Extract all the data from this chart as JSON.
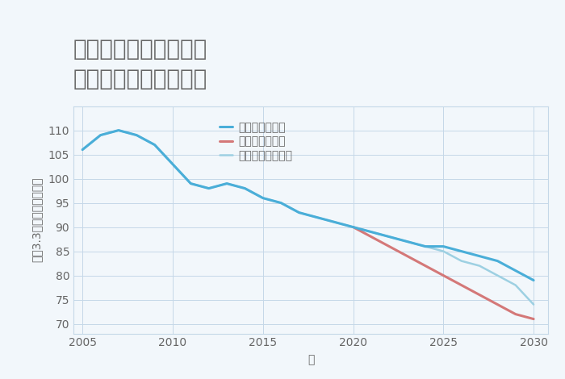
{
  "title": "千葉県白井市清水口の\n中古戸建ての価格推移",
  "xlabel": "年",
  "ylabel": "坪（3.3㎡）単価（万円）",
  "background_color": "#f2f7fb",
  "plot_bg_color": "#f2f7fb",
  "grid_color": "#c5d8e8",
  "ylim": [
    68,
    115
  ],
  "xlim": [
    2004.5,
    2030.8
  ],
  "yticks": [
    70,
    75,
    80,
    85,
    90,
    95,
    100,
    105,
    110
  ],
  "xticks": [
    2005,
    2010,
    2015,
    2020,
    2025,
    2030
  ],
  "good_scenario": {
    "x": [
      2005,
      2006,
      2007,
      2008,
      2009,
      2010,
      2011,
      2012,
      2013,
      2014,
      2015,
      2016,
      2017,
      2018,
      2019,
      2020,
      2021,
      2022,
      2023,
      2024,
      2025,
      2026,
      2027,
      2028,
      2029,
      2030
    ],
    "y": [
      106,
      109,
      110,
      109,
      107,
      103,
      99,
      98,
      99,
      98,
      96,
      95,
      93,
      92,
      91,
      90,
      89,
      88,
      87,
      86,
      86,
      85,
      84,
      83,
      81,
      79
    ],
    "color": "#4aaed8",
    "label": "グッドシナリオ",
    "linewidth": 2.2
  },
  "bad_scenario": {
    "x": [
      2020,
      2021,
      2022,
      2023,
      2024,
      2025,
      2026,
      2027,
      2028,
      2029,
      2030
    ],
    "y": [
      90,
      88,
      86,
      84,
      82,
      80,
      78,
      76,
      74,
      72,
      71
    ],
    "color": "#d47878",
    "label": "バッドシナリオ",
    "linewidth": 2.2
  },
  "normal_scenario": {
    "x": [
      2005,
      2006,
      2007,
      2008,
      2009,
      2010,
      2011,
      2012,
      2013,
      2014,
      2015,
      2016,
      2017,
      2018,
      2019,
      2020,
      2021,
      2022,
      2023,
      2024,
      2025,
      2026,
      2027,
      2028,
      2029,
      2030
    ],
    "y": [
      106,
      109,
      110,
      109,
      107,
      103,
      99,
      98,
      99,
      98,
      96,
      95,
      93,
      92,
      91,
      90,
      89,
      88,
      87,
      86,
      85,
      83,
      82,
      80,
      78,
      74
    ],
    "color": "#9dd0e2",
    "label": "ノーマルシナリオ",
    "linewidth": 1.8
  },
  "title_fontsize": 20,
  "label_fontsize": 10,
  "tick_fontsize": 10,
  "legend_fontsize": 10,
  "text_color": "#666666"
}
